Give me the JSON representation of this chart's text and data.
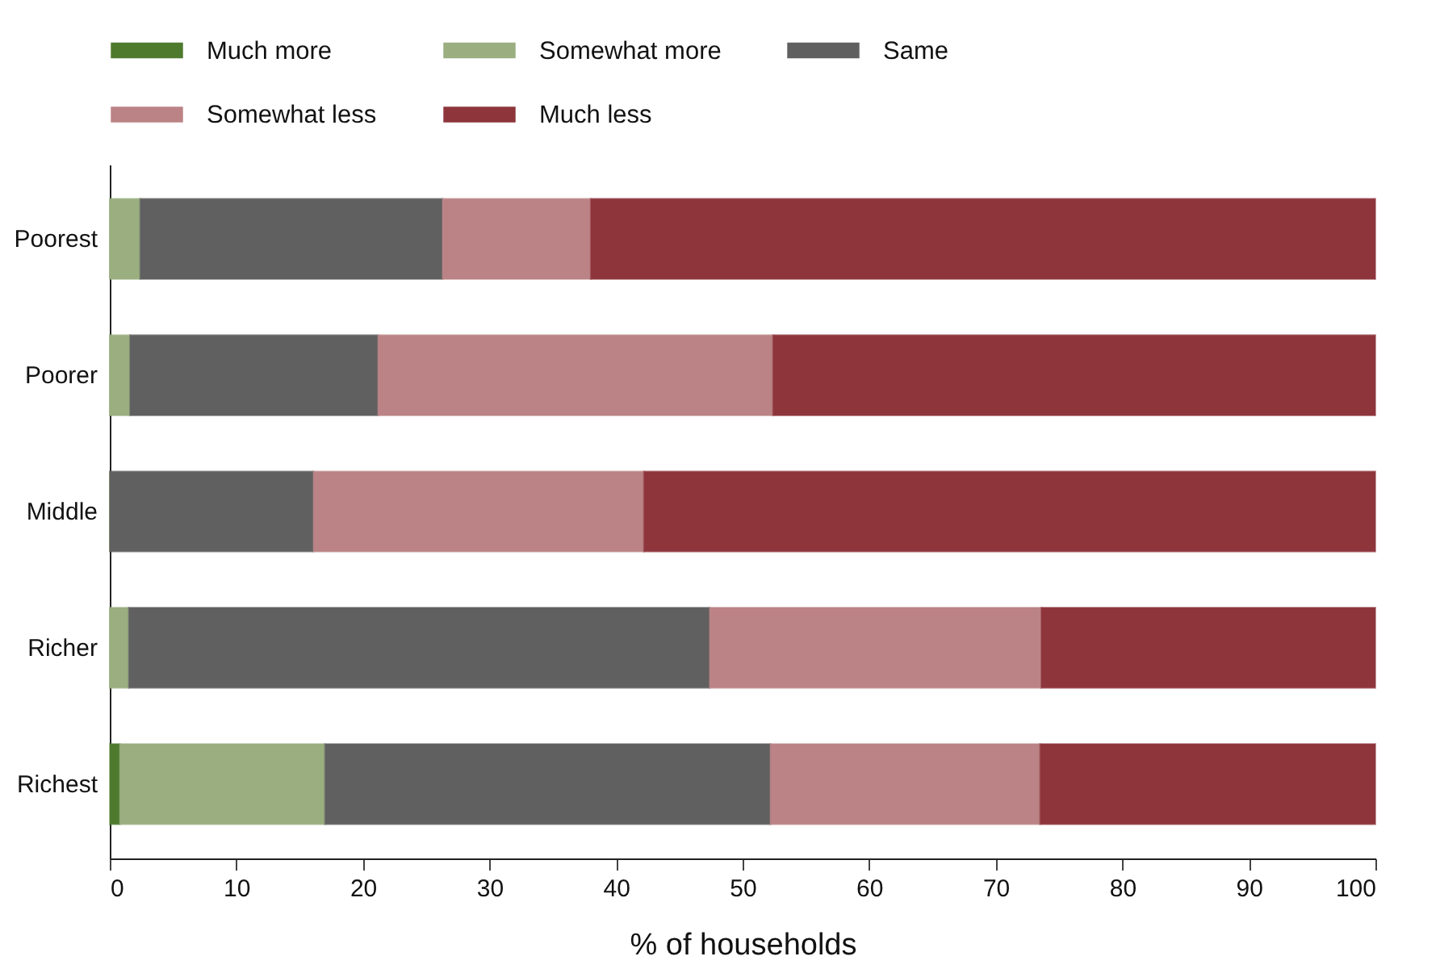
{
  "chart_data": {
    "type": "bar",
    "orientation": "horizontal",
    "stacked": true,
    "xlabel": "% of households",
    "categories": [
      "Poorest",
      "Poorer",
      "Middle",
      "Richer",
      "Richest"
    ],
    "series": [
      {
        "name": "Much more",
        "color": "#4e7a2e",
        "values": [
          0,
          0,
          0,
          0,
          0.8
        ]
      },
      {
        "name": "Somewhat more",
        "color": "#9aae80",
        "values": [
          2.4,
          1.6,
          0,
          1.5,
          16.2
        ]
      },
      {
        "name": "Same",
        "color": "#606060",
        "values": [
          23.9,
          19.6,
          16.1,
          45.9,
          35.2
        ]
      },
      {
        "name": "Somewhat less",
        "color": "#bb8385",
        "values": [
          11.7,
          31.2,
          26.1,
          26.2,
          21.3
        ]
      },
      {
        "name": "Much less",
        "color": "#8e353c",
        "values": [
          62.0,
          47.6,
          57.8,
          26.4,
          26.5
        ]
      }
    ],
    "xlim": [
      0,
      100
    ],
    "xticks": [
      0,
      10,
      20,
      30,
      40,
      50,
      60,
      70,
      80,
      90,
      100
    ],
    "grid": false,
    "legend": "top"
  }
}
